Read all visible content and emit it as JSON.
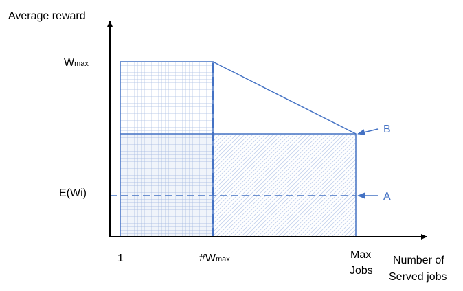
{
  "axes": {
    "y_label": "Average reward",
    "x_label": [
      "Number of",
      "Served jobs"
    ]
  },
  "y_labels": {
    "wmax": {
      "base": "W",
      "sub": "max"
    },
    "e_wi": "E(Wi)"
  },
  "x_labels": {
    "one": "1",
    "num_wmax": {
      "base": "#W",
      "sub": "max"
    },
    "max_jobs": [
      "Max",
      "Jobs"
    ]
  },
  "markers": {
    "a": "A",
    "b": "B"
  }
}
